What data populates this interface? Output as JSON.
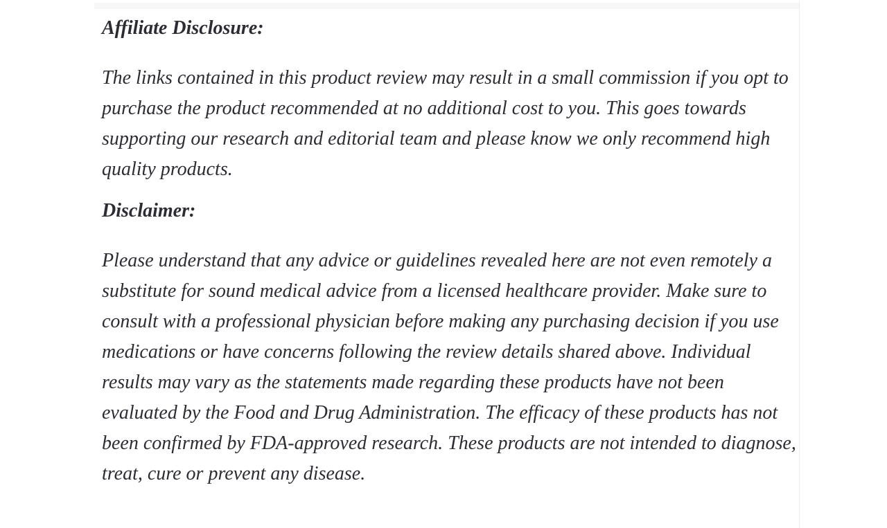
{
  "document": {
    "sections": [
      {
        "heading": "Affiliate Disclosure:",
        "body": "The links contained in this product review may result in a small commission if you opt to purchase the product recommended at no additional cost to you. This goes towards supporting our research and editorial team and please know we only recommend high quality products."
      },
      {
        "heading": "Disclaimer:",
        "body": "Please understand that any advice or guidelines revealed here are not even remotely a substitute for sound medical advice from a licensed healthcare provider. Make sure to consult with a professional physician before making any purchasing decision if you use medications or have concerns following the review details shared above. Individual results may vary as the statements made regarding these products have not been evaluated by the Food and Drug Administration. The efficacy of these products has not been confirmed by FDA-approved research. These products are not intended to diagnose, treat, cure or prevent any disease."
      }
    ]
  },
  "theme": {
    "background": "#ffffff",
    "text_color": "#2c2c34",
    "divider_color": "#ededed",
    "top_strip_color": "#f7f7f7"
  }
}
